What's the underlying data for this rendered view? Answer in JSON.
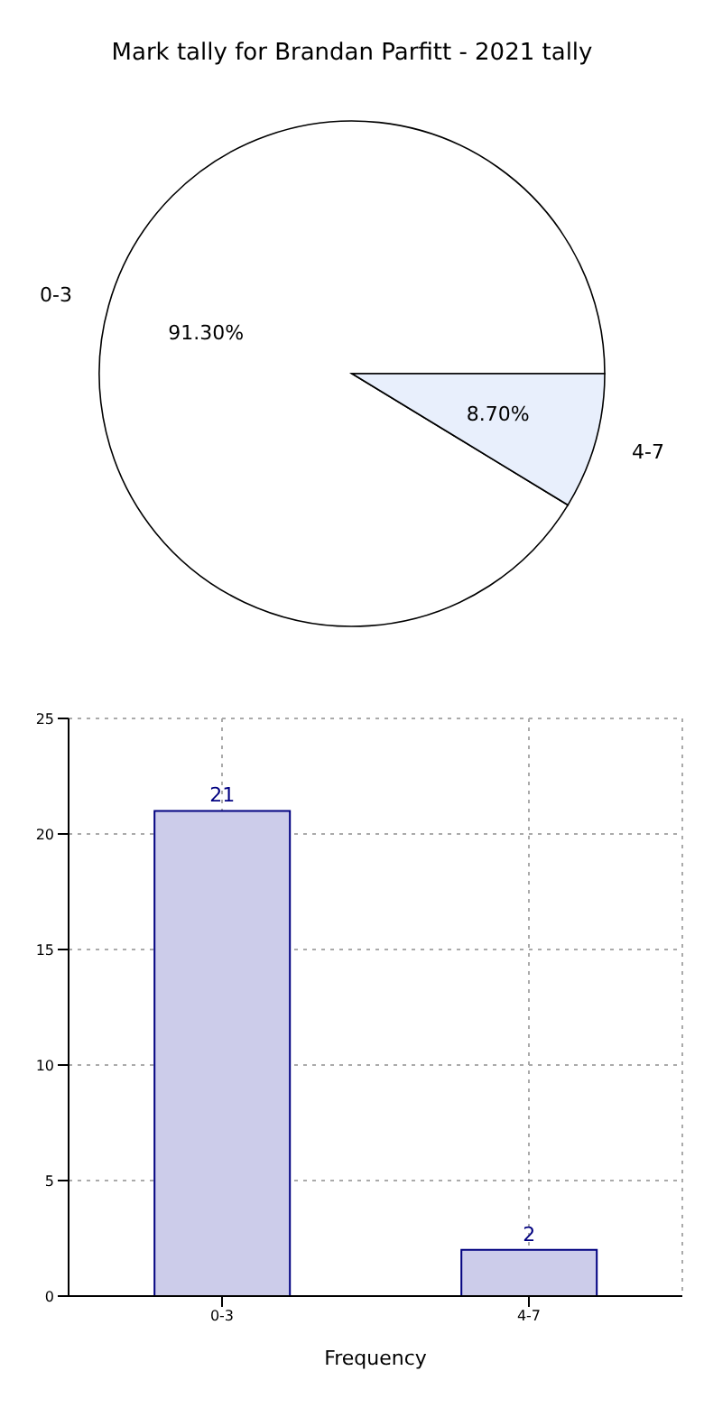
{
  "chart_data": [
    {
      "type": "pie",
      "title": "Mark tally for Brandan Parfitt - 2021 tally",
      "categories": [
        "0-3",
        "4-7"
      ],
      "values": [
        91.3,
        8.7
      ],
      "value_labels": [
        "91.30%",
        "8.70%"
      ],
      "colors": [
        "#ffffff",
        "#e8effc"
      ],
      "legend": false
    },
    {
      "type": "bar",
      "xlabel": "Frequency",
      "categories": [
        "0-3",
        "4-7"
      ],
      "values": [
        21,
        2
      ],
      "color": "#ccccea",
      "ylim": [
        0,
        25
      ],
      "yticks": [
        0,
        5,
        10,
        15,
        20,
        25
      ],
      "grid": true,
      "data_labels": true
    }
  ]
}
